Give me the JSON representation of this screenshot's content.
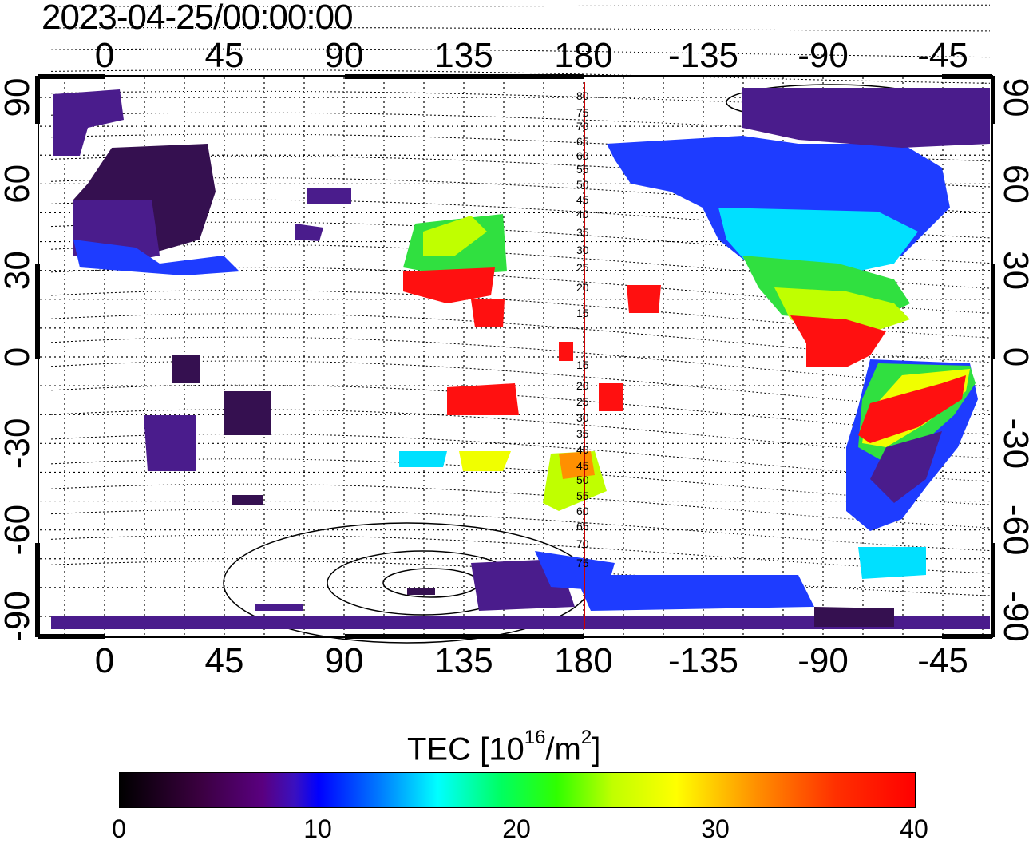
{
  "timestamp": "2023-04-25/00:00:00",
  "map": {
    "top_lon_labels": [
      "0",
      "45",
      "90",
      "135",
      "180",
      "-135",
      "-90",
      "-45"
    ],
    "bottom_lon_labels": [
      "0",
      "45",
      "90",
      "135",
      "180",
      "-135",
      "-90",
      "-45"
    ],
    "left_lat_labels": [
      "90",
      "60",
      "30",
      "0",
      "-30",
      "-60",
      "-90"
    ],
    "right_lat_labels": [
      "90",
      "60",
      "30",
      "0",
      "-30",
      "-60",
      "-90"
    ],
    "contour_labels": [
      "80",
      "75",
      "70",
      "65",
      "60",
      "55",
      "50",
      "45",
      "40",
      "35",
      "30",
      "25",
      "20",
      "15",
      "15",
      "20",
      "25",
      "30",
      "35",
      "40",
      "45",
      "50",
      "55",
      "60",
      "65",
      "70",
      "75"
    ],
    "meridian_line_color": "#cc0000",
    "tec_colors": {
      "low": "#2a0040",
      "purple": "#4a1c8c",
      "blue": "#1e3cff",
      "cyan": "#00e0ff",
      "green": "#30e040",
      "yellow": "#f0ff00",
      "orange": "#ff9000",
      "red": "#ff1010"
    }
  },
  "colorbar": {
    "title_prefix": "TEC  [10",
    "title_sup1": "16",
    "title_mid": "/m",
    "title_sup2": "2",
    "title_suffix": "]",
    "min": 0,
    "max": 40,
    "labels": [
      "0",
      "10",
      "20",
      "30",
      "40"
    ]
  }
}
